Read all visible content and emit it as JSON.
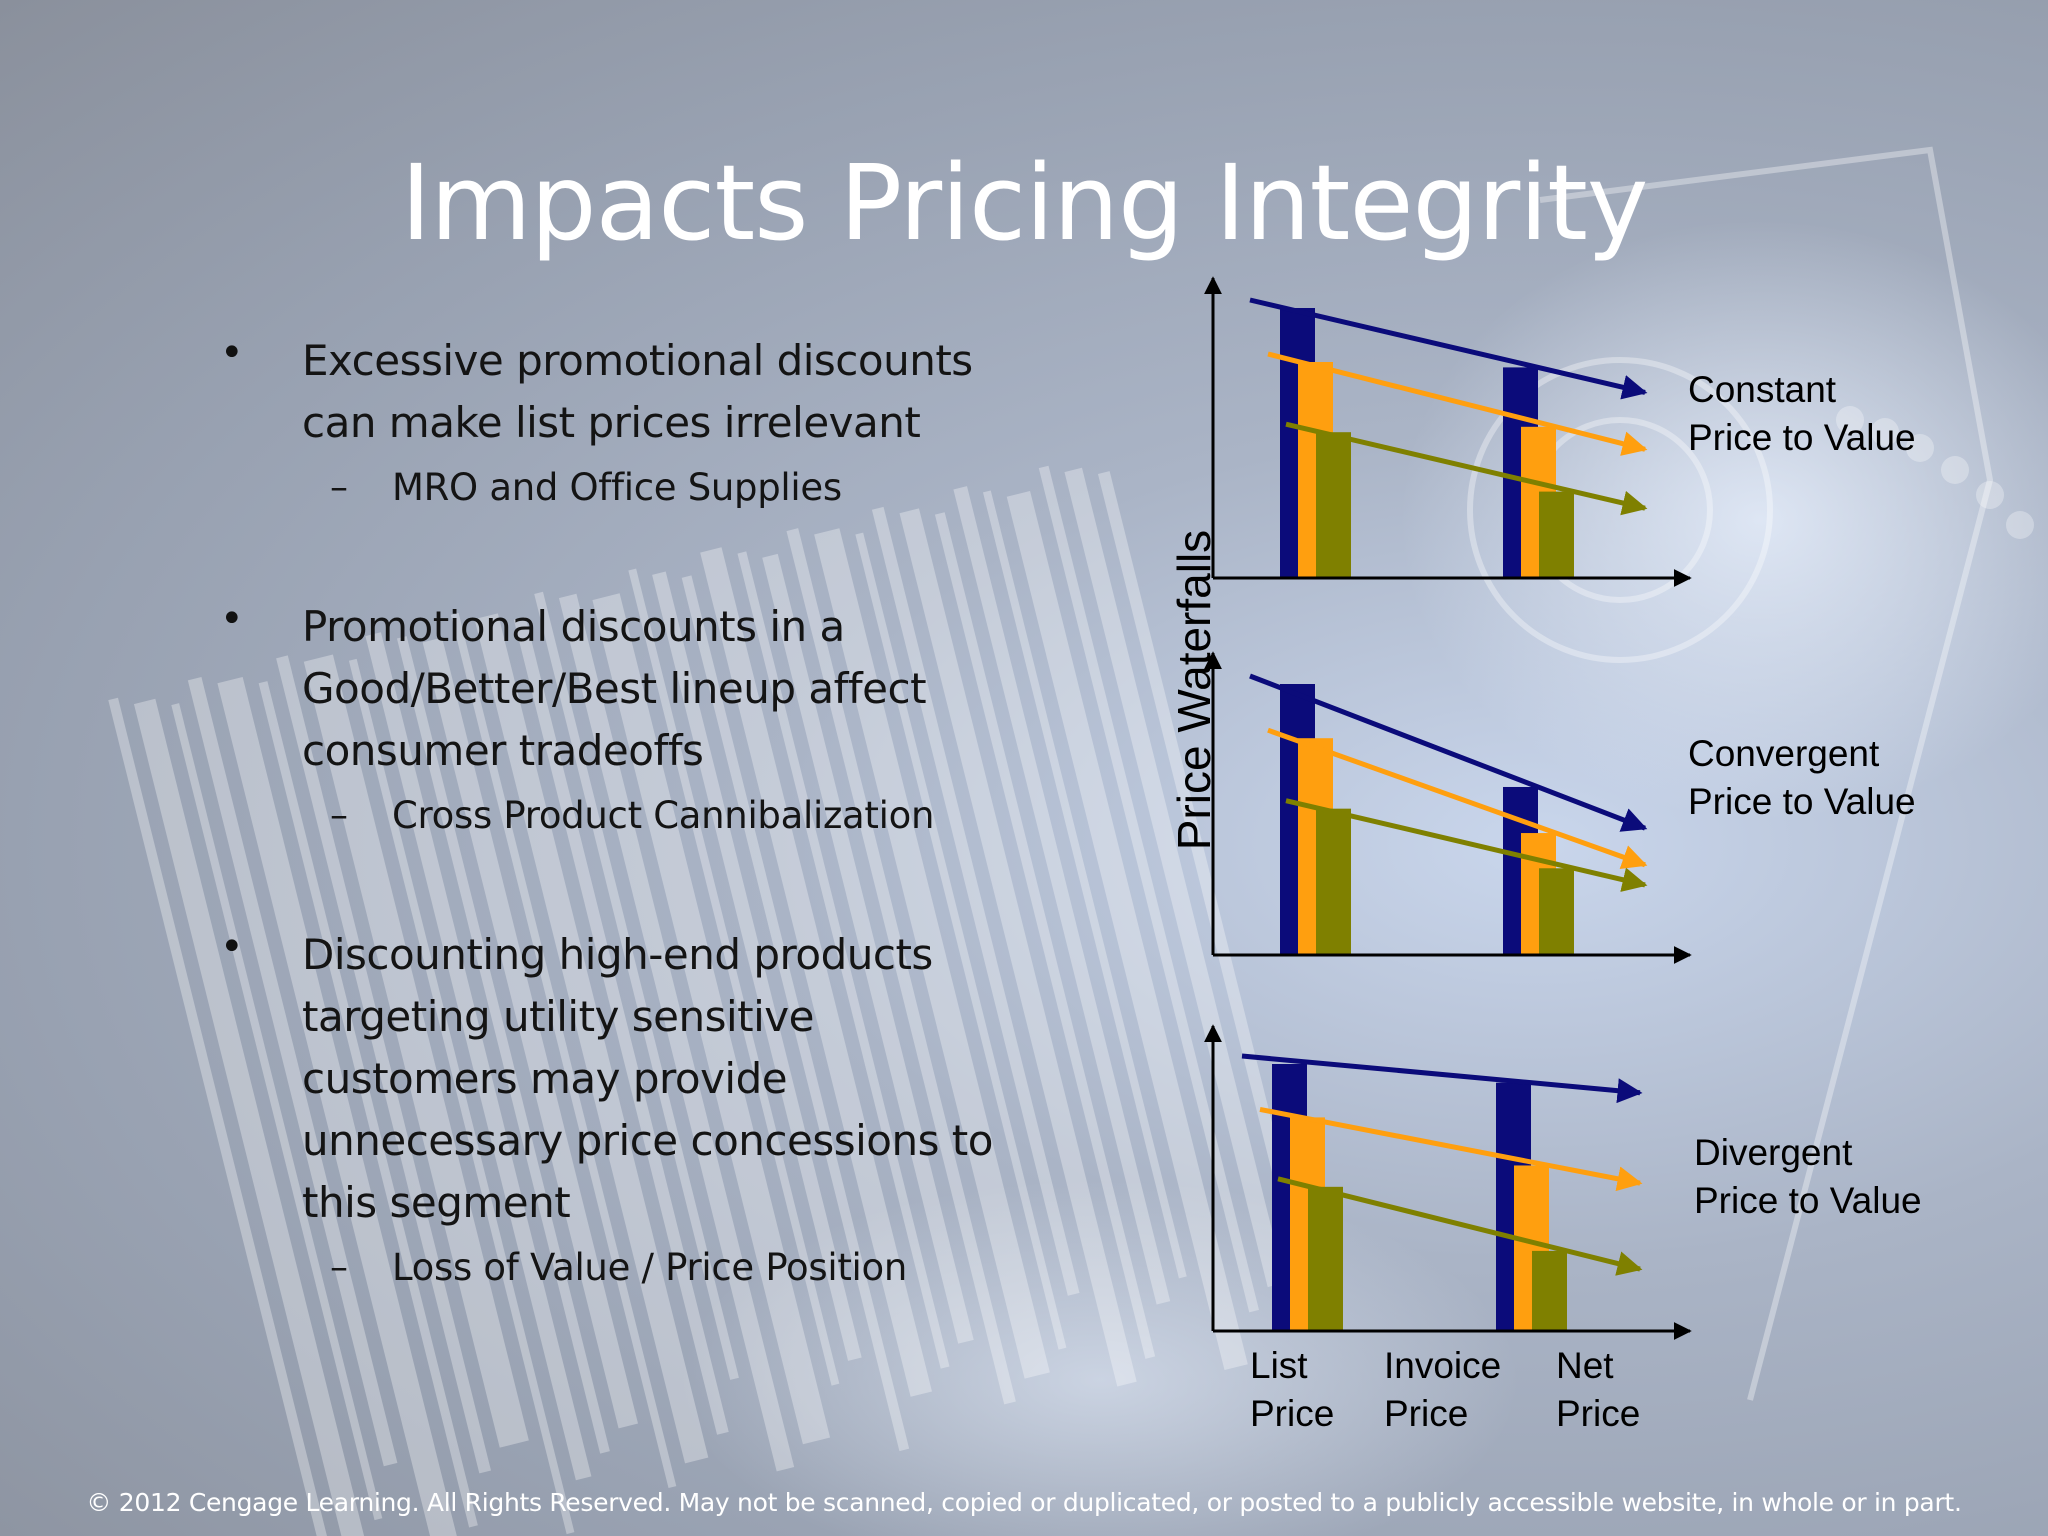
{
  "slide": {
    "title": "Impacts Pricing Integrity",
    "footer": "© 2012 Cengage Learning. All Rights Reserved. May not be scanned, copied or duplicated, or posted to a publicly accessible website, in whole or in part."
  },
  "bullets": [
    {
      "lines": [
        "Excessive promotional discounts",
        "can make list prices irrelevant"
      ],
      "sub": "MRO and Office Supplies"
    },
    {
      "lines": [
        "Promotional discounts in a",
        "Good/Better/Best lineup affect",
        "consumer tradeoffs"
      ],
      "sub": "Cross Product Cannibalization"
    },
    {
      "lines": [
        "Discounting high-end products",
        "targeting utility sensitive",
        "customers may provide",
        "unnecessary price concessions to",
        "this segment"
      ],
      "sub": "Loss of Value / Price Position"
    }
  ],
  "diagram": {
    "y_axis_label": "Price Waterfalls",
    "x_labels": [
      [
        "List",
        "Price"
      ],
      [
        "Invoice",
        "Price"
      ],
      [
        "Net",
        "Price"
      ]
    ],
    "panels": [
      {
        "label": [
          "Constant",
          "Price to Value"
        ],
        "relative_levels": {
          "list": [
            1.0,
            0.8,
            0.54
          ],
          "net": [
            0.78,
            0.56,
            0.32
          ]
        }
      },
      {
        "label": [
          "Convergent",
          "Price to Value"
        ],
        "relative_levels": {
          "list": [
            1.0,
            0.8,
            0.54
          ],
          "net": [
            0.62,
            0.45,
            0.32
          ]
        }
      },
      {
        "label": [
          "Divergent",
          "Price to Value"
        ],
        "relative_levels": {
          "list": [
            1.0,
            0.8,
            0.54
          ],
          "net": [
            0.93,
            0.62,
            0.3
          ]
        }
      }
    ],
    "colors": {
      "series": [
        "#0b0b7a",
        "#ff9f0f",
        "#7f8000"
      ],
      "axis": "#000000"
    }
  }
}
